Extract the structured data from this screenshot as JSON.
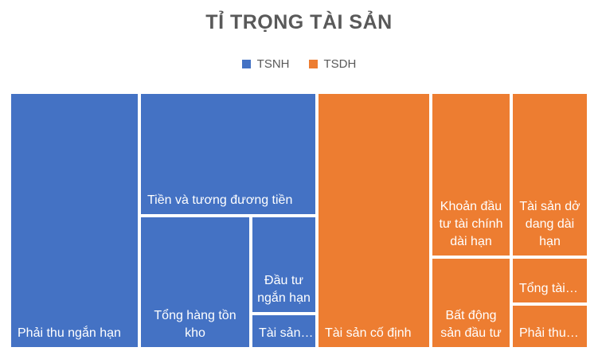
{
  "chart_data": {
    "type": "treemap",
    "title": "TỈ TRỌNG TÀI SẢN",
    "legend_position": "top",
    "series": [
      {
        "name": "TSNH",
        "color": "#4472C4"
      },
      {
        "name": "TSDH",
        "color": "#ED7D31"
      }
    ],
    "items": [
      {
        "label": "Phải thu ngắn hạn",
        "series": "TSNH"
      },
      {
        "label": "Tiền và tương đương tiền",
        "series": "TSNH"
      },
      {
        "label": "Tổng hàng tồn kho",
        "series": "TSNH"
      },
      {
        "label": "Đầu tư ngắn hạn",
        "series": "TSNH"
      },
      {
        "label": "Tài sản…",
        "series": "TSNH"
      },
      {
        "label": "Tài sản cố định",
        "series": "TSDH"
      },
      {
        "label": "Khoản đầu tư tài chính dài hạn",
        "series": "TSDH"
      },
      {
        "label": "Tài sản dở dang dài hạn",
        "series": "TSDH"
      },
      {
        "label": "Bất động sản đầu tư",
        "series": "TSDH"
      },
      {
        "label": "Tổng tài…",
        "series": "TSDH"
      },
      {
        "label": "Phải thu…",
        "series": "TSDH"
      }
    ]
  }
}
